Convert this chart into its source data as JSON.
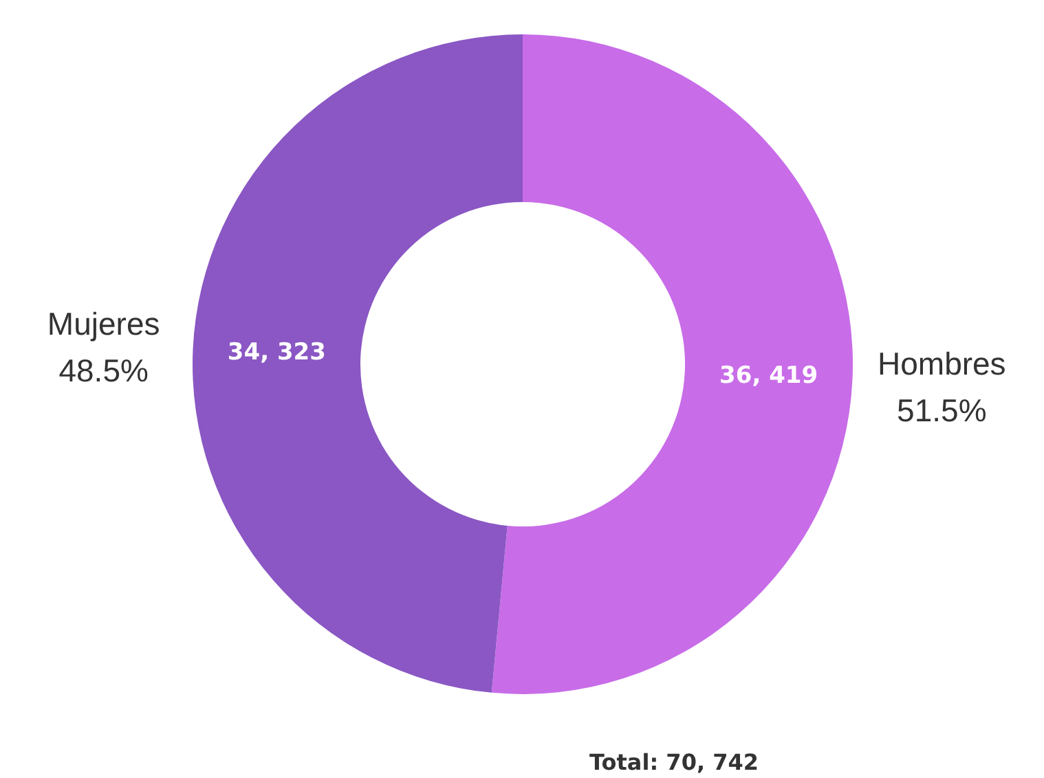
{
  "chart_data": {
    "type": "donut",
    "categories": [
      "Hombres",
      "Mujeres"
    ],
    "values": [
      51.5,
      48.5
    ],
    "colors": [
      "#c86ce8",
      "#8a57c4"
    ],
    "value_labels": [
      "51.5%",
      "48.5%"
    ],
    "annotations": [
      {
        "text": "36, 419",
        "x": "Hombres"
      },
      {
        "text": "34, 323",
        "x": "Mujeres"
      },
      "Total: 70, 742"
    ]
  }
}
